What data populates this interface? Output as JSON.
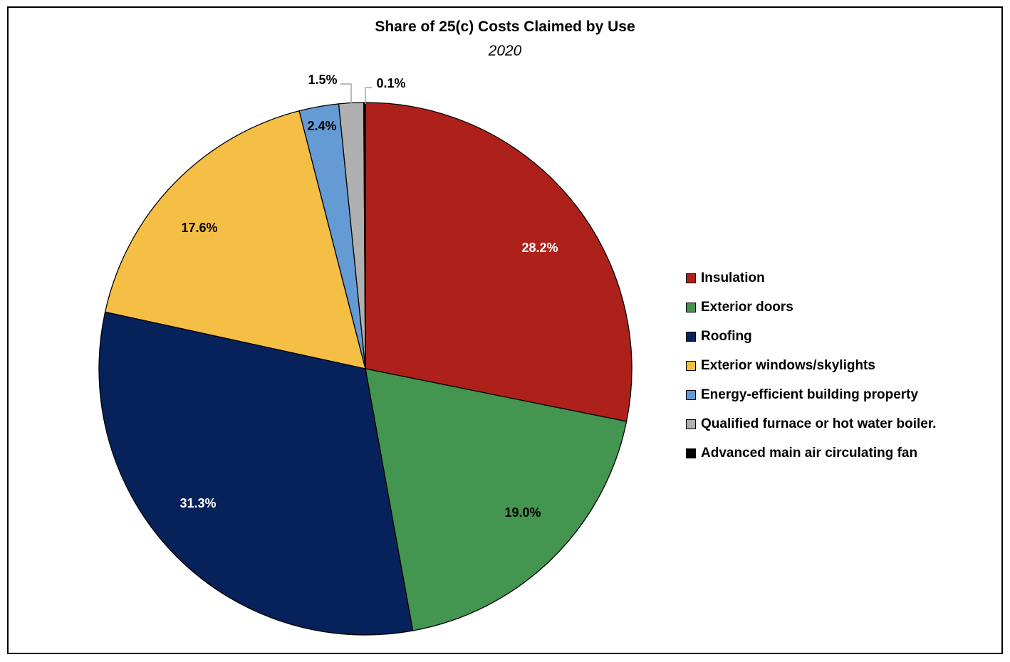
{
  "chart_data": {
    "type": "pie",
    "title": "Share of 25(c) Costs Claimed by Use",
    "subtitle": "2020",
    "legend_position": "right",
    "slices": [
      {
        "name": "Insulation",
        "value": 28.2,
        "label": "28.2%",
        "color": "#AE211A",
        "label_color": "#FFFFFF"
      },
      {
        "name": "Exterior doors",
        "value": 19.0,
        "label": "19.0%",
        "color": "#43954F",
        "label_color": "#000000"
      },
      {
        "name": "Roofing",
        "value": 31.3,
        "label": "31.3%",
        "color": "#07215A",
        "label_color": "#FFFFFF"
      },
      {
        "name": "Exterior windows/skylights",
        "value": 17.6,
        "label": "17.6%",
        "color": "#F5BF45",
        "label_color": "#000000"
      },
      {
        "name": "Energy-efficient building property",
        "value": 2.4,
        "label": "2.4%",
        "color": "#649BD5",
        "label_color": "#000000"
      },
      {
        "name": "Qualified furnace or hot water boiler.",
        "value": 1.5,
        "label": "1.5%",
        "color": "#B0B0B0",
        "label_color": "#000000"
      },
      {
        "name": "Advanced main air circulating fan",
        "value": 0.1,
        "label": "0.1%",
        "color": "#000000",
        "label_color": "#000000"
      }
    ]
  }
}
